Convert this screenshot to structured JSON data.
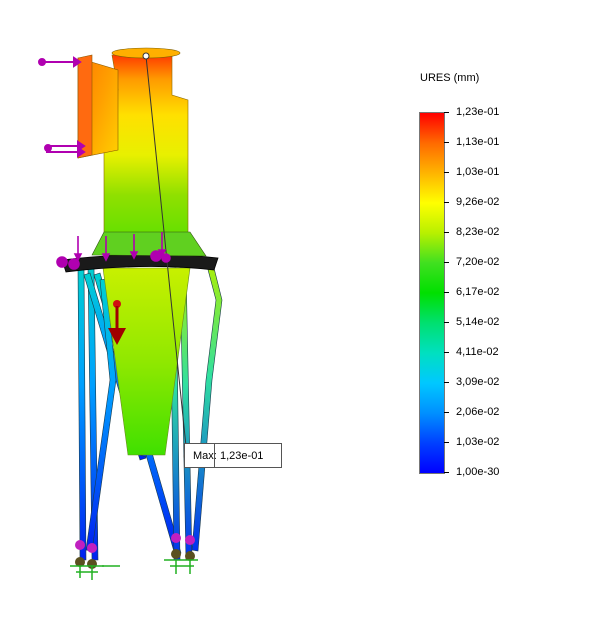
{
  "legend": {
    "title": "URES (mm)",
    "ticks": [
      "1,23e-01",
      "1,13e-01",
      "1,03e-01",
      "9,26e-02",
      "8,23e-02",
      "7,20e-02",
      "6,17e-02",
      "5,14e-02",
      "4,11e-02",
      "3,09e-02",
      "2,06e-02",
      "1,03e-02",
      "1,00e-30"
    ],
    "colors": [
      "#ff0000",
      "#ff6a00",
      "#ffb400",
      "#ffff00",
      "#b8f000",
      "#40e020",
      "#00e000",
      "#00e070",
      "#00e0c0",
      "#00c8ff",
      "#0090ff",
      "#0040ff",
      "#0000ff"
    ]
  },
  "probe": {
    "key": "Max:",
    "value": "1,23e-01"
  },
  "icons": {
    "force_arrow": "force-arrow-icon",
    "fixture": "fixture-icon",
    "gravity": "gravity-arrow-icon"
  }
}
